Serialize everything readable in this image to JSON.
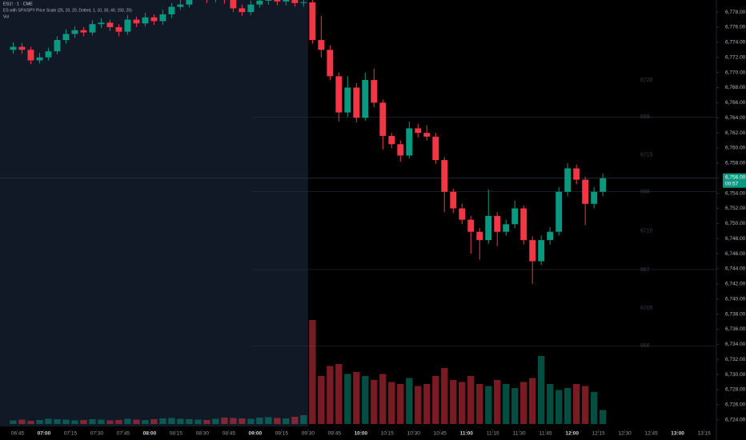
{
  "chart_data": {
    "type": "candlestick",
    "legend": [
      "ES1! · 1 · CME",
      "ES with SPX/SPY Price Scale (25, 20, 20, Dotted, 1, 10, 30, 40, 150, 25)",
      "Vol"
    ],
    "x": [
      "06:40",
      "06:45",
      "06:50",
      "06:55",
      "07:00",
      "07:05",
      "07:10",
      "07:15",
      "07:20",
      "07:25",
      "07:30",
      "07:35",
      "07:40",
      "07:45",
      "07:50",
      "07:55",
      "08:00",
      "08:05",
      "08:10",
      "08:15",
      "08:20",
      "08:25",
      "08:30",
      "08:35",
      "08:40",
      "08:45",
      "08:50",
      "08:55",
      "09:00",
      "09:05",
      "09:10",
      "09:15",
      "09:20",
      "09:25",
      "09:30",
      "09:35",
      "09:40",
      "09:45",
      "09:50",
      "09:55",
      "10:00",
      "10:05",
      "10:10",
      "10:15",
      "10:20",
      "10:25",
      "10:30",
      "10:35",
      "10:40",
      "10:45",
      "10:50",
      "10:55",
      "11:00",
      "11:05",
      "11:10",
      "11:15",
      "11:20",
      "11:25",
      "11:30",
      "11:35",
      "11:40",
      "11:45",
      "11:50",
      "11:55",
      "12:00",
      "12:05",
      "12:10",
      "12:15"
    ],
    "open": [
      6773.0,
      6773.4,
      6773.0,
      6771.6,
      6772.0,
      6772.8,
      6774.3,
      6775.1,
      6775.6,
      6775.3,
      6776.4,
      6776.6,
      6776.0,
      6775.4,
      6777.0,
      6776.5,
      6777.3,
      6776.8,
      6777.7,
      6778.7,
      6779.0,
      6780.0,
      6780.5,
      6779.8,
      6780.4,
      6779.6,
      6778.5,
      6778.0,
      6779.0,
      6779.5,
      6780.2,
      6779.4,
      6779.6,
      6779.2,
      6779.3,
      6774.3,
      6773.0,
      6769.5,
      6764.7,
      6768.0,
      6764.0,
      6769.0,
      6766.0,
      6761.6,
      6760.5,
      6759.0,
      6762.6,
      6762.0,
      6761.5,
      6758.4,
      6754.2,
      6752.0,
      6750.5,
      6748.9,
      6747.8,
      6751.0,
      6748.9,
      6749.9,
      6752.0,
      6747.8,
      6745.0,
      6747.8,
      6748.9,
      6754.2,
      6757.3,
      6755.8,
      6752.6,
      6754.2
    ],
    "high": [
      6774.0,
      6773.9,
      6773.4,
      6772.6,
      6773.3,
      6774.8,
      6775.7,
      6776.1,
      6776.0,
      6776.9,
      6777.2,
      6777.0,
      6776.4,
      6777.6,
      6777.4,
      6777.9,
      6777.7,
      6778.3,
      6779.2,
      6779.6,
      6780.6,
      6781.0,
      6780.9,
      6781.0,
      6780.8,
      6780.0,
      6779.0,
      6779.5,
      6780.0,
      6780.7,
      6780.6,
      6780.1,
      6780.0,
      6779.8,
      6779.9,
      6777.5,
      6773.6,
      6770.0,
      6769.5,
      6768.6,
      6770.0,
      6770.5,
      6766.4,
      6762.0,
      6761.0,
      6763.5,
      6763.2,
      6763.0,
      6762.0,
      6758.8,
      6754.6,
      6752.6,
      6751.0,
      6749.4,
      6754.5,
      6751.5,
      6750.5,
      6753.0,
      6752.4,
      6748.3,
      6748.4,
      6749.5,
      6754.8,
      6758.0,
      6757.8,
      6756.2,
      6754.8,
      6756.6
    ],
    "low": [
      6772.5,
      6772.5,
      6771.1,
      6771.2,
      6771.6,
      6772.4,
      6773.8,
      6774.6,
      6774.8,
      6774.9,
      6775.9,
      6775.5,
      6774.8,
      6775.0,
      6776.0,
      6776.1,
      6776.3,
      6776.3,
      6777.2,
      6778.3,
      6778.6,
      6779.6,
      6779.2,
      6779.3,
      6779.1,
      6778.0,
      6777.5,
      6777.6,
      6778.6,
      6779.0,
      6778.9,
      6778.9,
      6778.7,
      6778.7,
      6773.8,
      6772.0,
      6769.0,
      6763.5,
      6764.1,
      6763.4,
      6763.6,
      6765.4,
      6759.8,
      6760.0,
      6758.2,
      6758.6,
      6761.4,
      6761.0,
      6757.9,
      6751.5,
      6751.4,
      6749.9,
      6746.0,
      6745.2,
      6747.3,
      6747.0,
      6748.4,
      6749.4,
      6747.2,
      6742.0,
      6744.5,
      6747.2,
      6748.4,
      6753.6,
      6755.2,
      6749.8,
      6752.0,
      6753.6
    ],
    "close": [
      6773.4,
      6773.0,
      6771.6,
      6772.0,
      6772.8,
      6774.3,
      6775.1,
      6775.6,
      6775.3,
      6776.4,
      6776.6,
      6776.0,
      6775.4,
      6777.0,
      6776.5,
      6777.3,
      6776.8,
      6777.7,
      6778.7,
      6779.0,
      6780.0,
      6780.5,
      6779.8,
      6780.4,
      6779.6,
      6778.5,
      6778.0,
      6779.0,
      6779.5,
      6780.2,
      6779.4,
      6779.6,
      6779.2,
      6779.3,
      6774.3,
      6773.0,
      6769.5,
      6764.7,
      6768.0,
      6764.0,
      6769.0,
      6766.0,
      6761.6,
      6760.5,
      6759.0,
      6762.6,
      6762.0,
      6761.5,
      6758.4,
      6754.2,
      6752.0,
      6750.5,
      6748.9,
      6747.8,
      6751.0,
      6748.9,
      6749.9,
      6752.0,
      6747.8,
      6745.0,
      6747.8,
      6748.9,
      6754.2,
      6757.3,
      6755.8,
      6752.6,
      6754.2,
      6756.0
    ],
    "volume": [
      900,
      1100,
      800,
      1000,
      1300,
      1200,
      1100,
      900,
      1000,
      1200,
      1100,
      900,
      1000,
      1300,
      1100,
      1000,
      1200,
      1400,
      1500,
      1300,
      1200,
      1100,
      1000,
      1300,
      1600,
      1500,
      1400,
      1300,
      1600,
      1700,
      1500,
      1400,
      1800,
      2200,
      26000,
      12000,
      14500,
      15000,
      12500,
      13000,
      12000,
      11000,
      12500,
      10500,
      10000,
      11500,
      9500,
      10000,
      12000,
      14000,
      11000,
      10500,
      12000,
      10000,
      9500,
      11000,
      10000,
      9000,
      10500,
      11500,
      17000,
      10000,
      8500,
      9000,
      10000,
      9500,
      8000,
      3500
    ],
    "up_color": "#089981",
    "down_color": "#f23645",
    "session_start": "09:30",
    "xlim": [
      "06:35",
      "13:22"
    ],
    "xticks": [
      "06:45",
      "07:00",
      "07:15",
      "07:30",
      "07:45",
      "08:00",
      "08:15",
      "08:30",
      "08:45",
      "09:00",
      "09:15",
      "09:30",
      "09:45",
      "10:00",
      "10:15",
      "10:30",
      "10:45",
      "11:00",
      "11:15",
      "11:30",
      "11:45",
      "12:00",
      "12:15",
      "12:30",
      "12:45",
      "13:00",
      "13:15"
    ],
    "ylim": [
      6722.7,
      6779.6
    ],
    "yticks": [
      {
        "value": 6724,
        "label": "6,724.00"
      },
      {
        "value": 6726,
        "label": "6,726.00"
      },
      {
        "value": 6728,
        "label": "6,728.00"
      },
      {
        "value": 6730,
        "label": "6,730.00"
      },
      {
        "value": 6732,
        "label": "6,732.00"
      },
      {
        "value": 6734,
        "label": "6,734.00"
      },
      {
        "value": 6736,
        "label": "6,736.00"
      },
      {
        "value": 6738,
        "label": "6,738.00"
      },
      {
        "value": 6740,
        "label": "6,740.00"
      },
      {
        "value": 6742,
        "label": "6,742.00"
      },
      {
        "value": 6744,
        "label": "6,744.00"
      },
      {
        "value": 6746,
        "label": "6,746.00"
      },
      {
        "value": 6748,
        "label": "6,748.00"
      },
      {
        "value": 6750,
        "label": "6,750.00"
      },
      {
        "value": 6752,
        "label": "6,752.00"
      },
      {
        "value": 6754,
        "label": "6,754.00"
      },
      {
        "value": 6756,
        "label": "6,756.00"
      },
      {
        "value": 6758,
        "label": "6,758.00"
      },
      {
        "value": 6760,
        "label": "6,760.00"
      },
      {
        "value": 6762,
        "label": "6,762.00"
      },
      {
        "value": 6764,
        "label": "6,764.00"
      },
      {
        "value": 6766,
        "label": "6,766.00"
      },
      {
        "value": 6768,
        "label": "6,768.00"
      },
      {
        "value": 6770,
        "label": "6,770.00"
      },
      {
        "value": 6772,
        "label": "6,772.00"
      },
      {
        "value": 6774,
        "label": "6,774.00"
      },
      {
        "value": 6776,
        "label": "6,776.00"
      },
      {
        "value": 6778,
        "label": "6,778.00"
      }
    ],
    "last_price": {
      "value": 6756.0,
      "label": "6,756.00"
    },
    "countdown": "00:57",
    "levels": [
      {
        "label": "6720",
        "value": 6769.0,
        "line": false
      },
      {
        "label": "669",
        "value": 6764.1,
        "line": true
      },
      {
        "label": "6715",
        "value": 6759.1,
        "line": false
      },
      {
        "label": "668",
        "value": 6754.2,
        "line": true
      },
      {
        "label": "6710",
        "value": 6749.0,
        "line": false
      },
      {
        "label": "667",
        "value": 6743.9,
        "line": true
      },
      {
        "label": "6705",
        "value": 6738.8,
        "line": false
      },
      {
        "label": "666",
        "value": 6733.8,
        "line": true
      }
    ]
  }
}
